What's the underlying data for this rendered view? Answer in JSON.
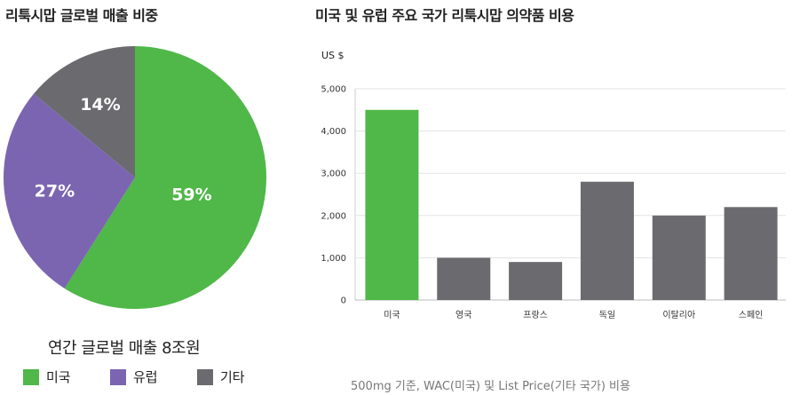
{
  "pie_title": "리툭시맙 글로벌 매출 비중",
  "bar_title": "미국 및 유럽 주요 국가 리툭시맙 의약품 비용",
  "total_label": "연간 글로벌 매출 8조원",
  "footnote": "500mg 기준, WAC(미국) 및 List Price(기타 국가) 비용",
  "legend": [
    {
      "label": "미국",
      "color": "#4fb848"
    },
    {
      "label": "유럽",
      "color": "#7b65b1"
    },
    {
      "label": "기타",
      "color": "#6b6b6f"
    }
  ],
  "chart_data": [
    {
      "type": "pie",
      "title": "리툭시맙 글로벌 매출 비중",
      "categories": [
        "미국",
        "유럽",
        "기타"
      ],
      "values": [
        59,
        27,
        14
      ],
      "labels": [
        "59%",
        "27%",
        "14%"
      ],
      "colors": [
        "#4fb848",
        "#7b65b1",
        "#6b6b6f"
      ],
      "legend": "bottom"
    },
    {
      "type": "bar",
      "title": "미국 및 유럽 주요 국가 리툭시맙 의약품 비용",
      "ylabel": "US $",
      "categories": [
        "미국",
        "영국",
        "프랑스",
        "독일",
        "이탈리아",
        "스페인"
      ],
      "values": [
        4500,
        1000,
        900,
        2800,
        2000,
        2200
      ],
      "colors": [
        "#4fb848",
        "#6b6b6f",
        "#6b6b6f",
        "#6b6b6f",
        "#6b6b6f",
        "#6b6b6f"
      ],
      "ylim": [
        0,
        5000
      ],
      "yticks": [
        0,
        1000,
        2000,
        3000,
        4000,
        5000
      ],
      "ytick_labels": [
        "0",
        "1,000",
        "2,000",
        "3,000",
        "4,000",
        "5,000"
      ],
      "grid": true
    }
  ]
}
